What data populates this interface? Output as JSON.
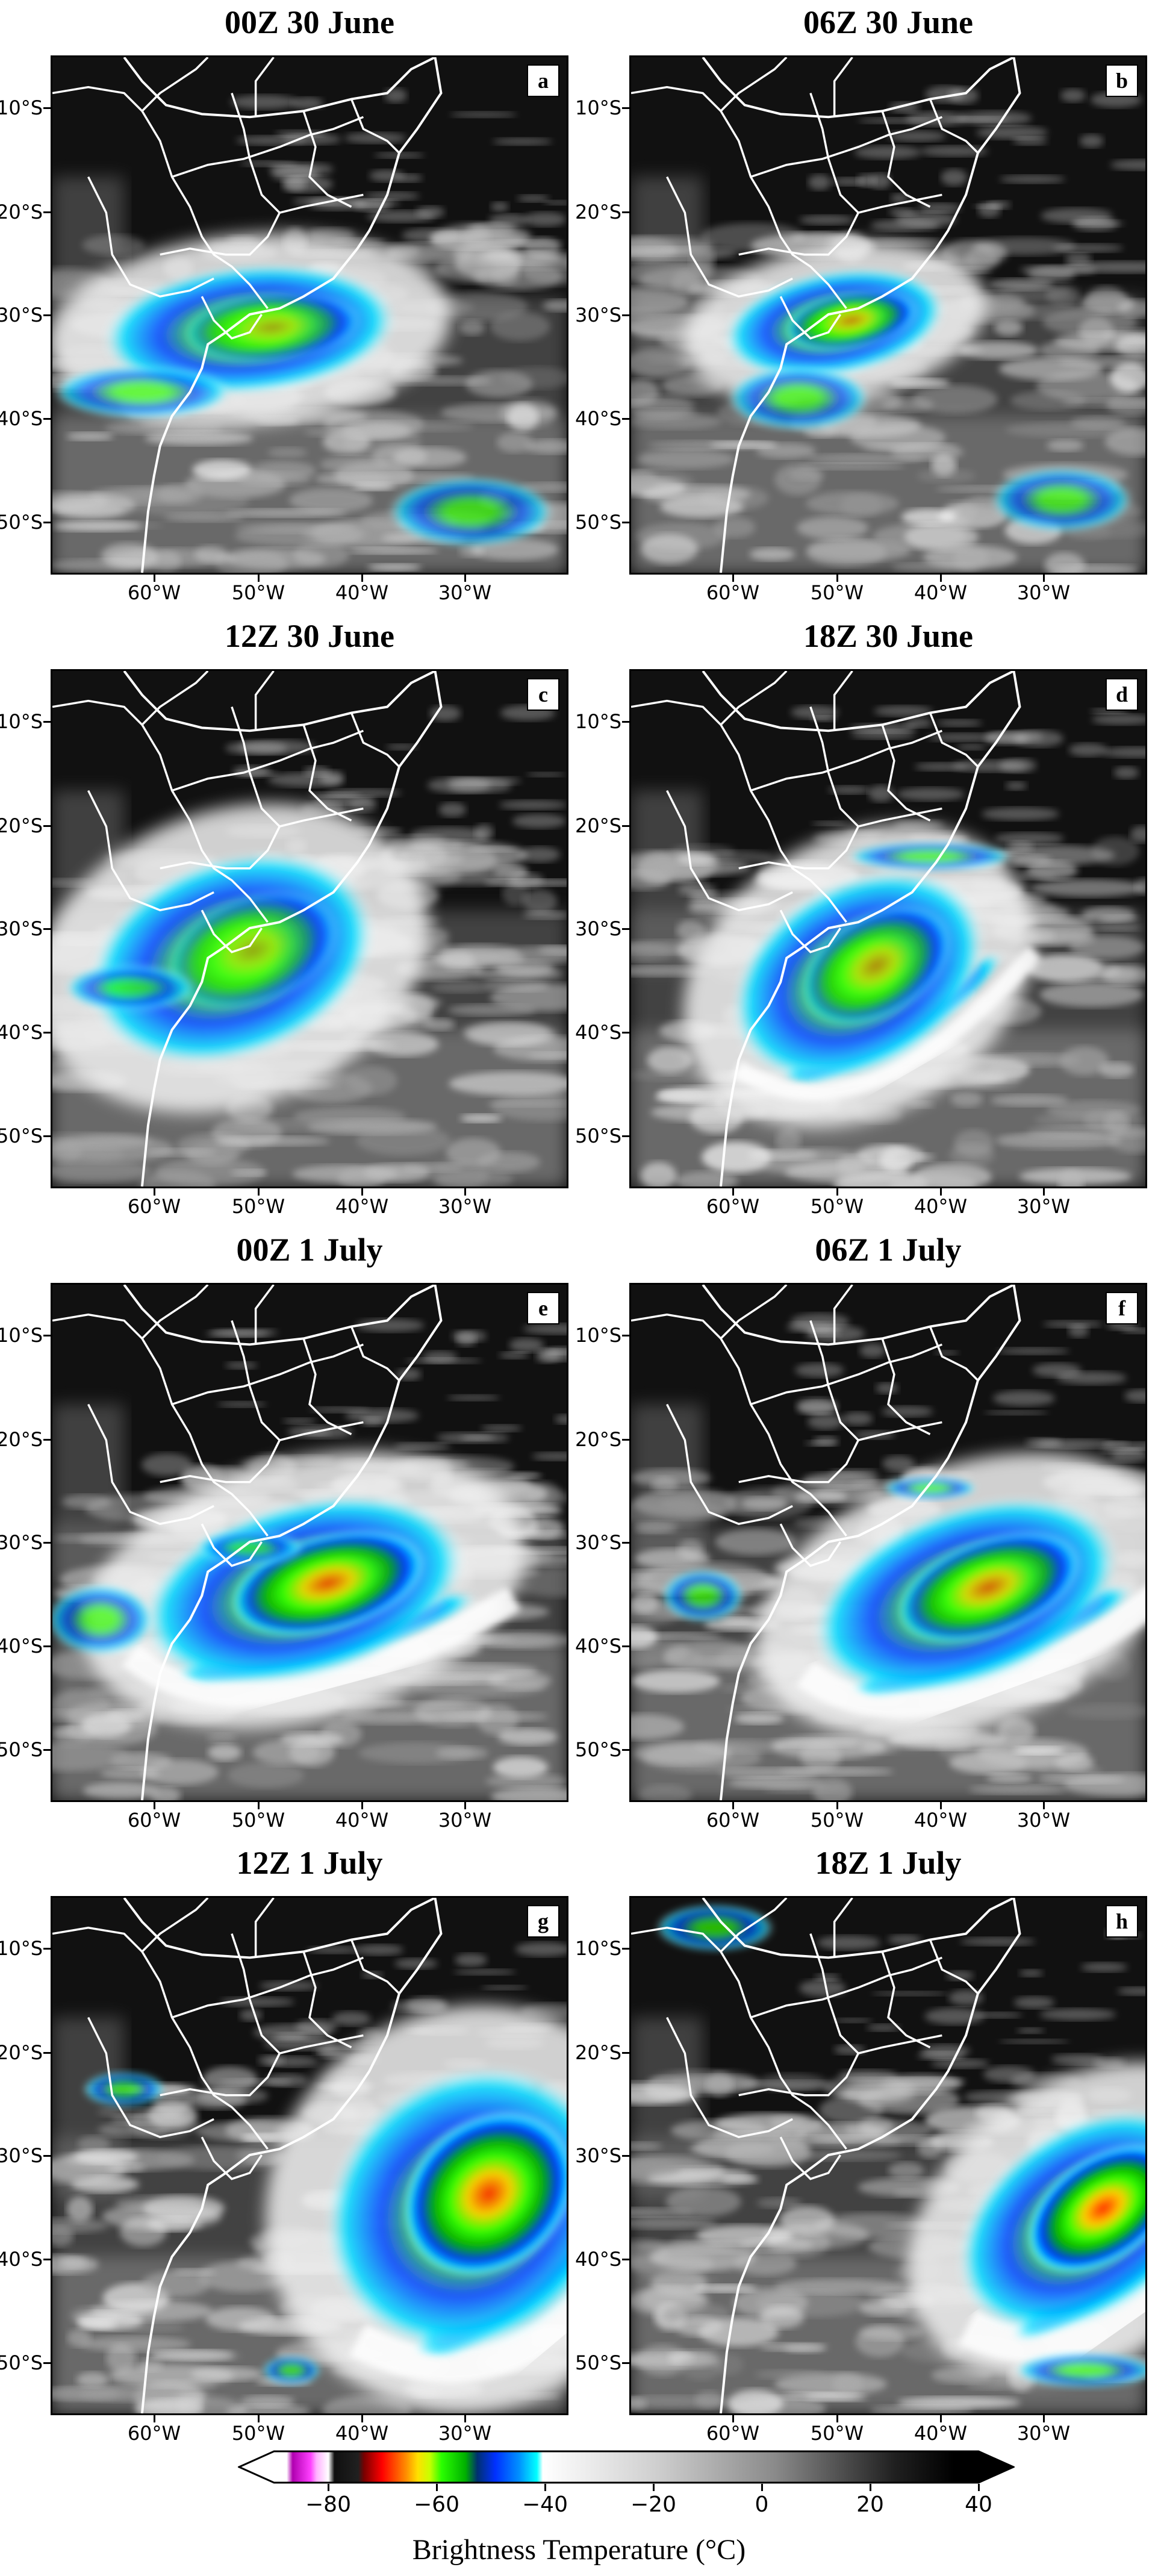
{
  "panels": [
    {
      "title": "00Z 30 June",
      "letter": "a",
      "storm": "a"
    },
    {
      "title": "06Z 30 June",
      "letter": "b",
      "storm": "b"
    },
    {
      "title": "12Z 30 June",
      "letter": "c",
      "storm": "c"
    },
    {
      "title": "18Z 30 June",
      "letter": "d",
      "storm": "d"
    },
    {
      "title": "00Z 1 July",
      "letter": "e",
      "storm": "e"
    },
    {
      "title": "06Z 1 July",
      "letter": "f",
      "storm": "f"
    },
    {
      "title": "12Z 1 July",
      "letter": "g",
      "storm": "g"
    },
    {
      "title": "18Z 1 July",
      "letter": "h",
      "storm": "h"
    }
  ],
  "lat_ticks": [
    "10°S",
    "20°S",
    "30°S",
    "40°S",
    "50°S"
  ],
  "lon_ticks": [
    "60°W",
    "50°W",
    "40°W",
    "30°W"
  ],
  "colorbar": {
    "label": "Brightness Temperature (°C)",
    "ticks": [
      "−80",
      "−60",
      "−40",
      "−20",
      "0",
      "20",
      "40"
    ],
    "range": [
      -90,
      40
    ],
    "stops": [
      {
        "t": -90,
        "color": "#ffffff"
      },
      {
        "t": -82,
        "color": "#ffffff"
      },
      {
        "t": -81,
        "color": "#b000b0"
      },
      {
        "t": -78,
        "color": "#ff40ff"
      },
      {
        "t": -77,
        "color": "#ffb0ff"
      },
      {
        "t": -75,
        "color": "#ffffff"
      },
      {
        "t": -74,
        "color": "#101010"
      },
      {
        "t": -70,
        "color": "#202020"
      },
      {
        "t": -69,
        "color": "#7a0000"
      },
      {
        "t": -66,
        "color": "#ff0000"
      },
      {
        "t": -62,
        "color": "#ff8c00"
      },
      {
        "t": -60,
        "color": "#ffe000"
      },
      {
        "t": -58,
        "color": "#c8ff00"
      },
      {
        "t": -56,
        "color": "#2aff00"
      },
      {
        "t": -52,
        "color": "#00b000"
      },
      {
        "t": -50,
        "color": "#003070"
      },
      {
        "t": -47,
        "color": "#0030ff"
      },
      {
        "t": -43,
        "color": "#0090ff"
      },
      {
        "t": -40,
        "color": "#00ffff"
      },
      {
        "t": -39,
        "color": "#ffffff"
      },
      {
        "t": -20,
        "color": "#cfcfcf"
      },
      {
        "t": 0,
        "color": "#8a8a8a"
      },
      {
        "t": 20,
        "color": "#202020"
      },
      {
        "t": 30,
        "color": "#000000"
      },
      {
        "t": 40,
        "color": "#000000"
      }
    ]
  }
}
